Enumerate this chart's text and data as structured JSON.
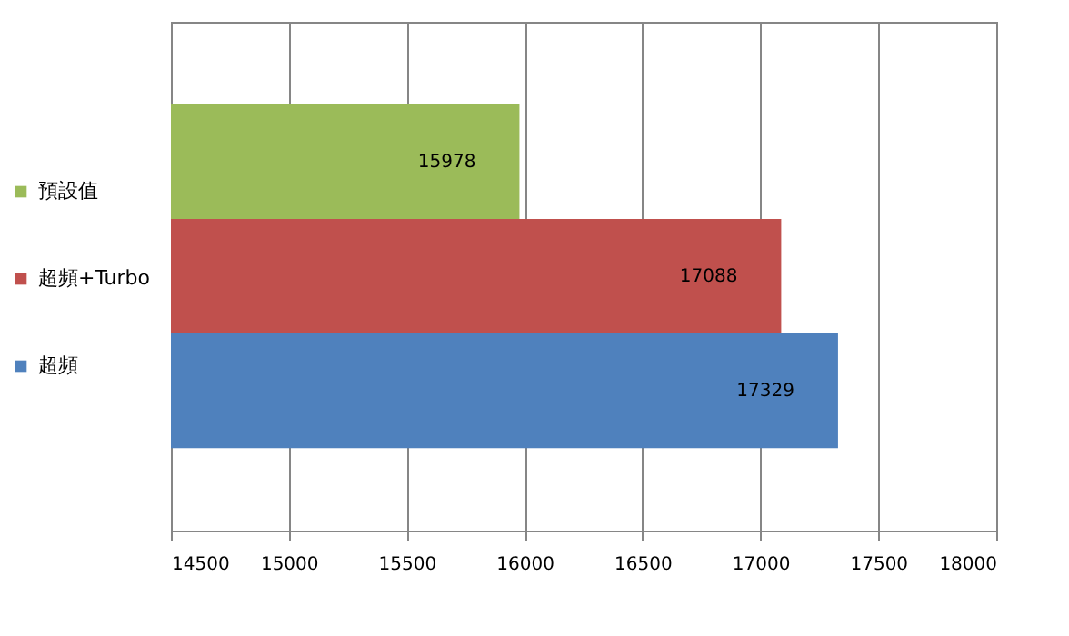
{
  "chart_data": {
    "type": "bar",
    "orientation": "horizontal",
    "categories": [
      null
    ],
    "series": [
      {
        "name": "預設值",
        "color": "#9bbb59",
        "values": [
          15978
        ]
      },
      {
        "name": "超頻+Turbo",
        "color": "#c0504d",
        "values": [
          17088
        ]
      },
      {
        "name": "超頻",
        "color": "#4f81bd",
        "values": [
          17329
        ]
      }
    ],
    "xlim": [
      14500,
      18000
    ],
    "xticks": [
      14500,
      15000,
      15500,
      16000,
      16500,
      17000,
      17500,
      18000
    ],
    "grid": "x",
    "legend": "left",
    "data_labels": true
  }
}
